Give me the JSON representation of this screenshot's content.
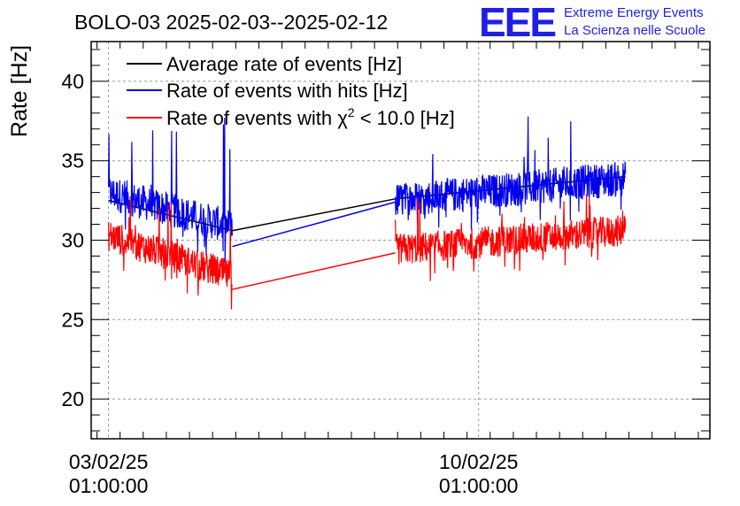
{
  "header": {
    "title": "BOLO-03 2025-02-03--2025-02-12",
    "logo_text": "EEE",
    "logo_line1": "Extreme Energy Events",
    "logo_line2": "La Scienza nelle Scuole"
  },
  "chart_data": {
    "type": "line",
    "title": "BOLO-03 2025-02-03--2025-02-12",
    "xlabel": "",
    "ylabel": "Rate [Hz]",
    "xlim_days": [
      -0.15,
      5.2
    ],
    "ylim": [
      17.5,
      42.5
    ],
    "yticks": [
      20,
      25,
      30,
      35,
      40
    ],
    "xticks": [
      {
        "day": 0,
        "line1": "03/02/25",
        "line2": "01:00:00"
      },
      {
        "day": 3.2,
        "line1": "10/02/25",
        "line2": "01:00:00"
      }
    ],
    "grid": true,
    "legend_position": "top-left",
    "gap_days": [
      1.07,
      2.48
    ],
    "colors": {
      "average": "#000000",
      "hits": "#0000ee",
      "chi2": "#ff0000"
    },
    "series": [
      {
        "key": "average",
        "name": "Average rate of events [Hz]",
        "color": "#000000",
        "segments": [
          {
            "x": [
              0,
              1.07
            ],
            "y": [
              32.5,
              30.6
            ]
          },
          {
            "x": [
              2.48,
              4.47
            ],
            "y": [
              32.6,
              34.0
            ]
          }
        ]
      },
      {
        "key": "hits",
        "name": "Rate of events with hits [Hz]",
        "color": "#0000ee",
        "trend": [
          {
            "x": [
              0,
              1.07
            ],
            "y": [
              33.0,
              30.8
            ]
          },
          {
            "x": [
              2.48,
              4.47
            ],
            "y": [
              32.5,
              33.9
            ]
          }
        ],
        "noise": 1.1,
        "spikes_max": 37.9
      },
      {
        "key": "chi2",
        "name": "Rate of events with χ² < 10.0 [Hz]",
        "name_prefix": "Rate of events with ",
        "name_chi": "χ",
        "name_sup": "2",
        "name_suffix": " < 10.0 [Hz]",
        "color": "#ff0000",
        "trend": [
          {
            "x": [
              0,
              1.07
            ],
            "y": [
              30.3,
              27.7
            ]
          },
          {
            "x": [
              2.48,
              4.47
            ],
            "y": [
              29.4,
              30.6
            ]
          }
        ],
        "noise": 1.0,
        "spikes_max": 33.0
      }
    ],
    "connectors": {
      "average": {
        "x": [
          1.07,
          2.48
        ],
        "y": [
          30.6,
          32.6
        ]
      },
      "hits": {
        "x": [
          1.07,
          2.48
        ],
        "y": [
          29.6,
          32.4
        ]
      },
      "chi2": {
        "x": [
          1.07,
          2.48
        ],
        "y": [
          26.9,
          29.2
        ]
      }
    }
  }
}
